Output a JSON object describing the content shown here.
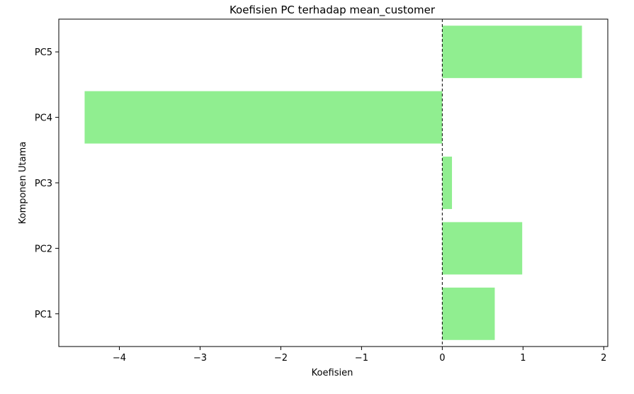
{
  "chart_data": {
    "type": "bar",
    "orientation": "horizontal",
    "title": "Koefisien PC terhadap mean_customer",
    "xlabel": "Koefisien",
    "ylabel": "Komponen Utama",
    "categories": [
      "PC1",
      "PC2",
      "PC3",
      "PC4",
      "PC5"
    ],
    "values": [
      0.65,
      0.99,
      0.12,
      -4.43,
      1.73
    ],
    "xlim": [
      -4.75,
      2.05
    ],
    "xticks": [
      -4,
      -3,
      -2,
      -1,
      0,
      1,
      2
    ],
    "xtick_labels": [
      "−4",
      "−3",
      "−2",
      "−1",
      "0",
      "1",
      "2"
    ],
    "reference_line": {
      "x": 0,
      "style": "dashed",
      "color": "#000000"
    },
    "bar_color": "#90ee90",
    "grid": false,
    "legend": "none"
  }
}
